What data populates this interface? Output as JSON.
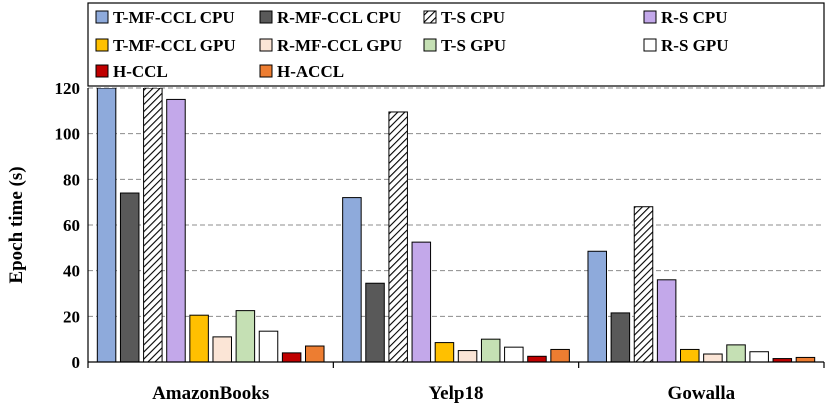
{
  "chart_data": {
    "type": "bar",
    "title": "",
    "xlabel": "",
    "ylabel": "Epoch time (s)",
    "ylim": [
      0,
      120
    ],
    "yticks": [
      0,
      20,
      40,
      60,
      80,
      100,
      120
    ],
    "grid": "horizontal dashed",
    "legend_position": "top",
    "categories": [
      "AmazonBooks",
      "Yelp18",
      "Gowalla"
    ],
    "series": [
      {
        "name": "T-MF-CCL CPU",
        "color": "#8eaadb",
        "pattern": "solid",
        "values": [
          120,
          72,
          48.5
        ]
      },
      {
        "name": "R-MF-CCL CPU",
        "color": "#595959",
        "pattern": "solid",
        "values": [
          74,
          34.5,
          21.5
        ]
      },
      {
        "name": "T-S CPU",
        "color": "#ffffff",
        "pattern": "hatch",
        "values": [
          120,
          109.5,
          68
        ]
      },
      {
        "name": "R-S CPU",
        "color": "#c3a8ea",
        "pattern": "solid",
        "values": [
          115,
          52.5,
          36
        ]
      },
      {
        "name": "T-MF-CCL GPU",
        "color": "#ffc000",
        "pattern": "solid",
        "values": [
          20.5,
          8.5,
          5.5
        ]
      },
      {
        "name": "R-MF-CCL GPU",
        "color": "#fbe5d6",
        "pattern": "solid",
        "values": [
          11,
          5,
          3.5
        ]
      },
      {
        "name": "T-S GPU",
        "color": "#c5e0b4",
        "pattern": "solid",
        "values": [
          22.5,
          10,
          7.5
        ]
      },
      {
        "name": "R-S GPU",
        "color": "#ffffff",
        "pattern": "solid",
        "values": [
          13.5,
          6.5,
          4.5
        ]
      },
      {
        "name": "H-CCL",
        "color": "#c00000",
        "pattern": "solid",
        "values": [
          4,
          2.5,
          1.5
        ]
      },
      {
        "name": "H-ACCL",
        "color": "#ed7d31",
        "pattern": "solid",
        "values": [
          7,
          5.5,
          2
        ]
      }
    ]
  }
}
